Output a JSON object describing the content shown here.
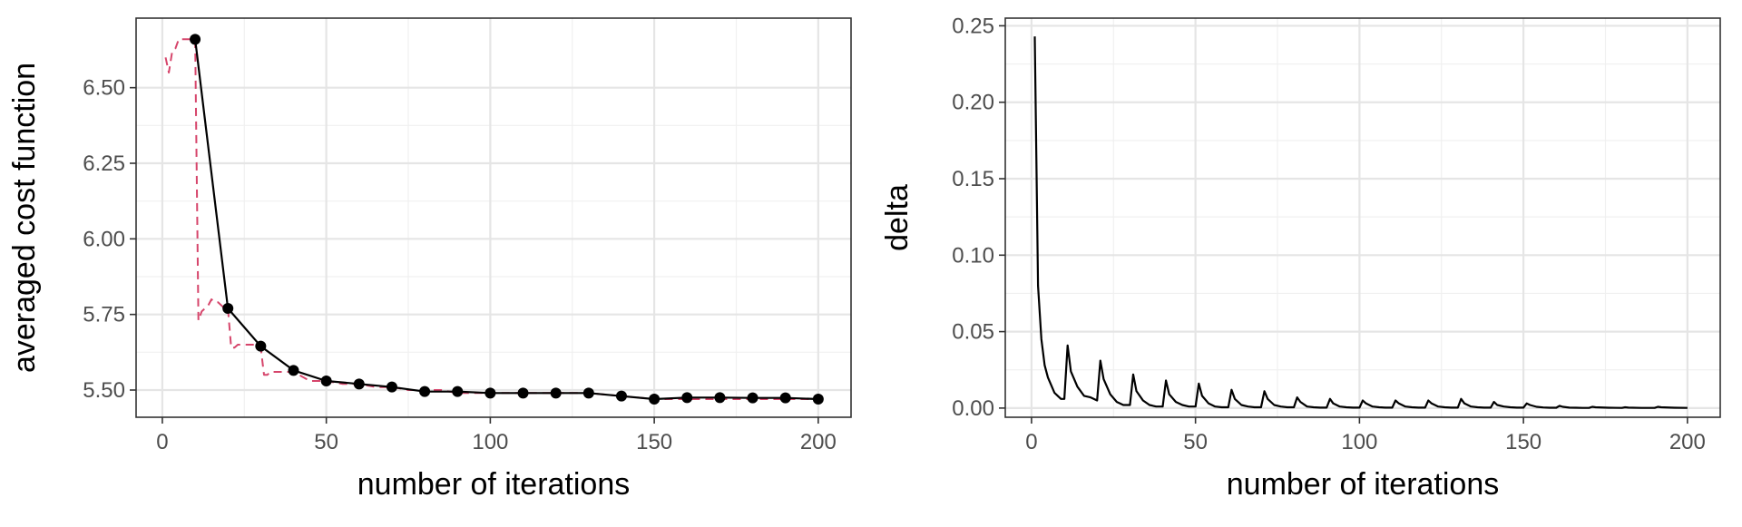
{
  "chart_data": [
    {
      "type": "line",
      "xlabel": "number of iterations",
      "ylabel": "averaged cost function",
      "xlim": [
        -8,
        210
      ],
      "ylim": [
        5.41,
        6.73
      ],
      "xticks": [
        0,
        50,
        100,
        150,
        200
      ],
      "yticks": [
        5.5,
        5.75,
        6.0,
        6.25,
        6.5
      ],
      "ytick_labels": [
        "5.50",
        "5.75",
        "6.00",
        "6.25",
        "6.50"
      ],
      "xtick_labels": [
        "0",
        "50",
        "100",
        "150",
        "200"
      ],
      "grid": true,
      "series": [
        {
          "style": "dashed",
          "color": "#d6456b",
          "x": [
            1,
            2,
            3,
            4,
            5,
            6,
            7,
            8,
            9,
            10,
            11,
            12,
            13,
            14,
            15,
            16,
            17,
            18,
            19,
            20,
            21,
            22,
            23,
            24,
            25,
            26,
            27,
            28,
            29,
            30,
            31,
            32,
            33,
            34,
            35,
            36,
            37,
            38,
            39,
            40,
            45,
            50,
            55,
            60,
            65,
            70,
            75,
            80,
            85,
            90,
            95,
            100,
            110,
            120,
            130,
            140,
            150,
            160,
            170,
            180,
            190,
            200
          ],
          "y": [
            6.6,
            6.55,
            6.62,
            6.63,
            6.66,
            6.66,
            6.66,
            6.66,
            6.66,
            6.66,
            5.73,
            5.76,
            5.77,
            5.78,
            5.8,
            5.79,
            5.79,
            5.78,
            5.77,
            5.77,
            5.64,
            5.64,
            5.65,
            5.65,
            5.65,
            5.65,
            5.65,
            5.65,
            5.65,
            5.64,
            5.55,
            5.55,
            5.56,
            5.56,
            5.56,
            5.56,
            5.56,
            5.56,
            5.56,
            5.56,
            5.53,
            5.53,
            5.52,
            5.52,
            5.51,
            5.51,
            5.5,
            5.5,
            5.5,
            5.49,
            5.49,
            5.49,
            5.49,
            5.49,
            5.49,
            5.48,
            5.47,
            5.47,
            5.47,
            5.47,
            5.47,
            5.47
          ]
        },
        {
          "style": "solid-with-points",
          "color": "#000000",
          "x": [
            10,
            20,
            30,
            40,
            50,
            60,
            70,
            80,
            90,
            100,
            110,
            120,
            130,
            140,
            150,
            160,
            170,
            180,
            190,
            200
          ],
          "y": [
            6.66,
            5.77,
            5.645,
            5.565,
            5.53,
            5.52,
            5.51,
            5.495,
            5.495,
            5.49,
            5.49,
            5.49,
            5.49,
            5.48,
            5.47,
            5.475,
            5.475,
            5.474,
            5.474,
            5.47
          ]
        }
      ]
    },
    {
      "type": "line",
      "xlabel": "number of iterations",
      "ylabel": "delta",
      "xlim": [
        -8,
        210
      ],
      "ylim": [
        -0.006,
        0.255
      ],
      "xticks": [
        0,
        50,
        100,
        150,
        200
      ],
      "yticks": [
        0.0,
        0.05,
        0.1,
        0.15,
        0.2,
        0.25
      ],
      "ytick_labels": [
        "0.00",
        "0.05",
        "0.10",
        "0.15",
        "0.20",
        "0.25"
      ],
      "xtick_labels": [
        "0",
        "50",
        "100",
        "150",
        "200"
      ],
      "grid": true,
      "series": [
        {
          "style": "solid",
          "color": "#000000",
          "x": [
            1,
            2,
            3,
            4,
            5,
            6,
            7,
            8,
            9,
            10,
            11,
            12,
            14,
            16,
            18,
            20,
            21,
            22,
            24,
            26,
            28,
            30,
            31,
            32,
            34,
            36,
            38,
            40,
            41,
            42,
            44,
            46,
            48,
            50,
            51,
            52,
            54,
            56,
            58,
            60,
            61,
            62,
            64,
            66,
            68,
            70,
            71,
            72,
            74,
            76,
            78,
            80,
            81,
            82,
            84,
            86,
            88,
            90,
            91,
            92,
            94,
            96,
            98,
            100,
            101,
            102,
            104,
            106,
            108,
            110,
            111,
            112,
            114,
            116,
            118,
            120,
            121,
            122,
            124,
            126,
            128,
            130,
            131,
            132,
            134,
            136,
            138,
            140,
            141,
            142,
            144,
            146,
            148,
            150,
            151,
            152,
            154,
            156,
            158,
            160,
            161,
            162,
            164,
            166,
            168,
            170,
            171,
            172,
            176,
            180,
            181,
            182,
            186,
            190,
            191,
            192,
            196,
            200
          ],
          "y": [
            0.243,
            0.08,
            0.045,
            0.028,
            0.02,
            0.015,
            0.01,
            0.008,
            0.006,
            0.006,
            0.041,
            0.024,
            0.014,
            0.008,
            0.007,
            0.005,
            0.031,
            0.019,
            0.009,
            0.004,
            0.002,
            0.002,
            0.022,
            0.011,
            0.005,
            0.002,
            0.001,
            0.001,
            0.018,
            0.009,
            0.004,
            0.002,
            0.001,
            0.001,
            0.016,
            0.008,
            0.003,
            0.001,
            0.0005,
            0.0005,
            0.012,
            0.006,
            0.002,
            0.001,
            0.0005,
            0.0005,
            0.011,
            0.006,
            0.002,
            0.001,
            0.0005,
            0.0005,
            0.007,
            0.004,
            0.001,
            0.0005,
            0.0003,
            0.0003,
            0.006,
            0.003,
            0.001,
            0.0005,
            0.0003,
            0.0003,
            0.005,
            0.003,
            0.001,
            0.0005,
            0.0003,
            0.0003,
            0.005,
            0.003,
            0.001,
            0.0005,
            0.0003,
            0.0003,
            0.005,
            0.003,
            0.001,
            0.0005,
            0.0003,
            0.0003,
            0.006,
            0.003,
            0.001,
            0.0005,
            0.0003,
            0.0003,
            0.004,
            0.002,
            0.001,
            0.0005,
            0.0003,
            0.0003,
            0.003,
            0.002,
            0.0008,
            0.0004,
            0.0002,
            0.0002,
            0.0015,
            0.0008,
            0.0003,
            0.0002,
            0.0001,
            0.0001,
            0.0008,
            0.0005,
            0.0002,
            0.0001,
            0.0005,
            0.0003,
            0.0001,
            0.0001,
            0.0008,
            0.0005,
            0.0002,
            0.0001
          ]
        }
      ]
    }
  ]
}
